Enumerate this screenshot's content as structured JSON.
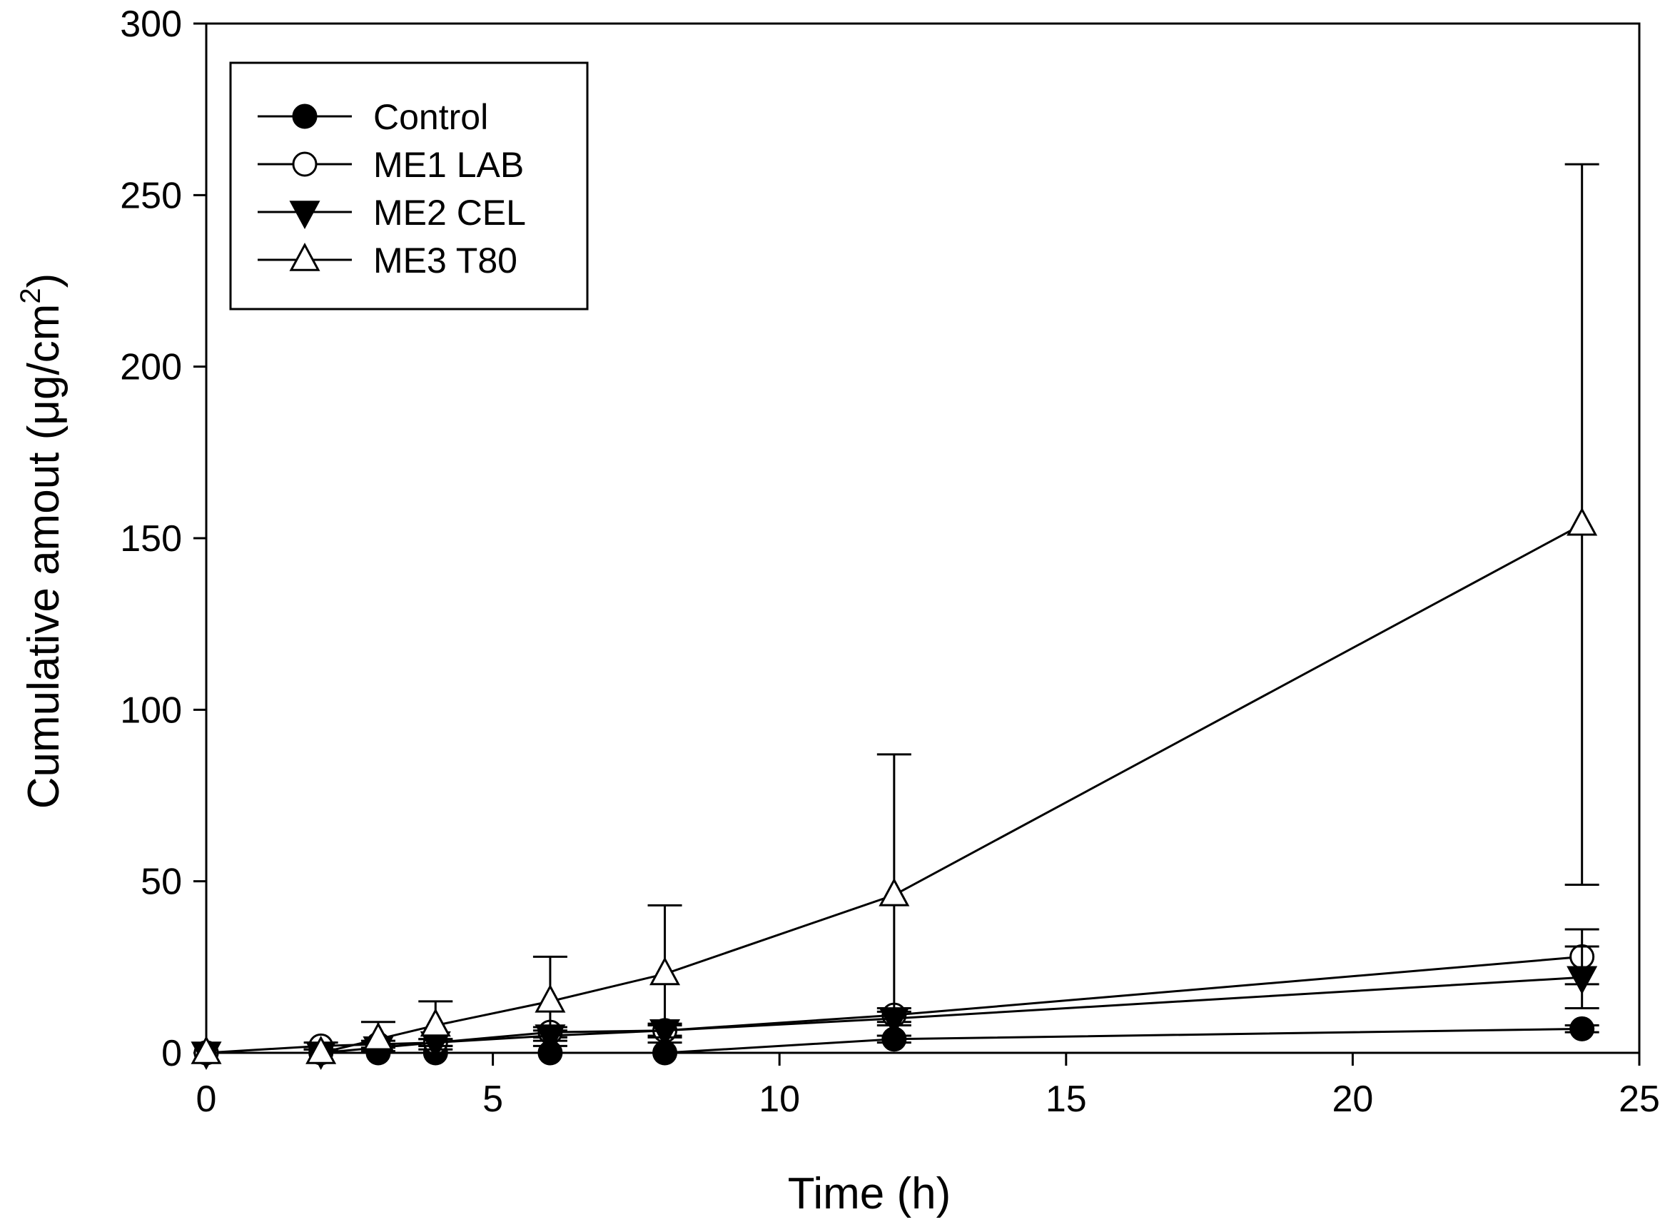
{
  "chart_data": {
    "type": "line",
    "title": "",
    "xlabel": "Time (h)",
    "ylabel": "Cumulative amout (μg/cm",
    "ylabel_superscript": "2",
    "ylabel_close": ")",
    "xlim": [
      0,
      25
    ],
    "ylim": [
      0,
      300
    ],
    "xticks": [
      0,
      5,
      10,
      15,
      20,
      25
    ],
    "yticks": [
      0,
      50,
      100,
      150,
      200,
      250,
      300
    ],
    "xtick_labels": [
      "0",
      "5",
      "10",
      "15",
      "20",
      "25"
    ],
    "ytick_labels": [
      "0",
      "50",
      "100",
      "150",
      "200",
      "250",
      "300"
    ],
    "grid": false,
    "legend_position": "top-left",
    "series": [
      {
        "name": "Control",
        "marker": "filled-circle",
        "x": [
          0,
          2,
          3,
          4,
          6,
          8,
          12,
          24
        ],
        "y": [
          0,
          0,
          0,
          0,
          0,
          0,
          4,
          7
        ],
        "error": [
          0,
          0,
          0,
          0,
          0,
          0,
          1,
          1
        ]
      },
      {
        "name": "ME1  LAB",
        "marker": "open-circle",
        "x": [
          0,
          2,
          3,
          4,
          6,
          8,
          12,
          24
        ],
        "y": [
          0,
          2,
          2.5,
          3,
          6,
          6.5,
          11,
          28
        ],
        "error": [
          0,
          1,
          1,
          1,
          1.5,
          1.5,
          2,
          8
        ]
      },
      {
        "name": "ME2  CEL",
        "marker": "filled-triangle-down",
        "x": [
          0,
          2,
          3,
          4,
          6,
          8,
          12,
          24
        ],
        "y": [
          0,
          0,
          1.5,
          3,
          5,
          6.5,
          10,
          22
        ],
        "error": [
          0,
          1,
          1,
          1,
          1.5,
          2,
          2,
          9
        ]
      },
      {
        "name": "ME3  T80",
        "marker": "open-triangle-up",
        "x": [
          0,
          2,
          3,
          4,
          6,
          8,
          12,
          24
        ],
        "y": [
          0,
          0,
          4,
          8,
          15,
          23,
          46,
          154
        ],
        "error": [
          0,
          1,
          5,
          7,
          13,
          20,
          41,
          105
        ]
      }
    ]
  }
}
